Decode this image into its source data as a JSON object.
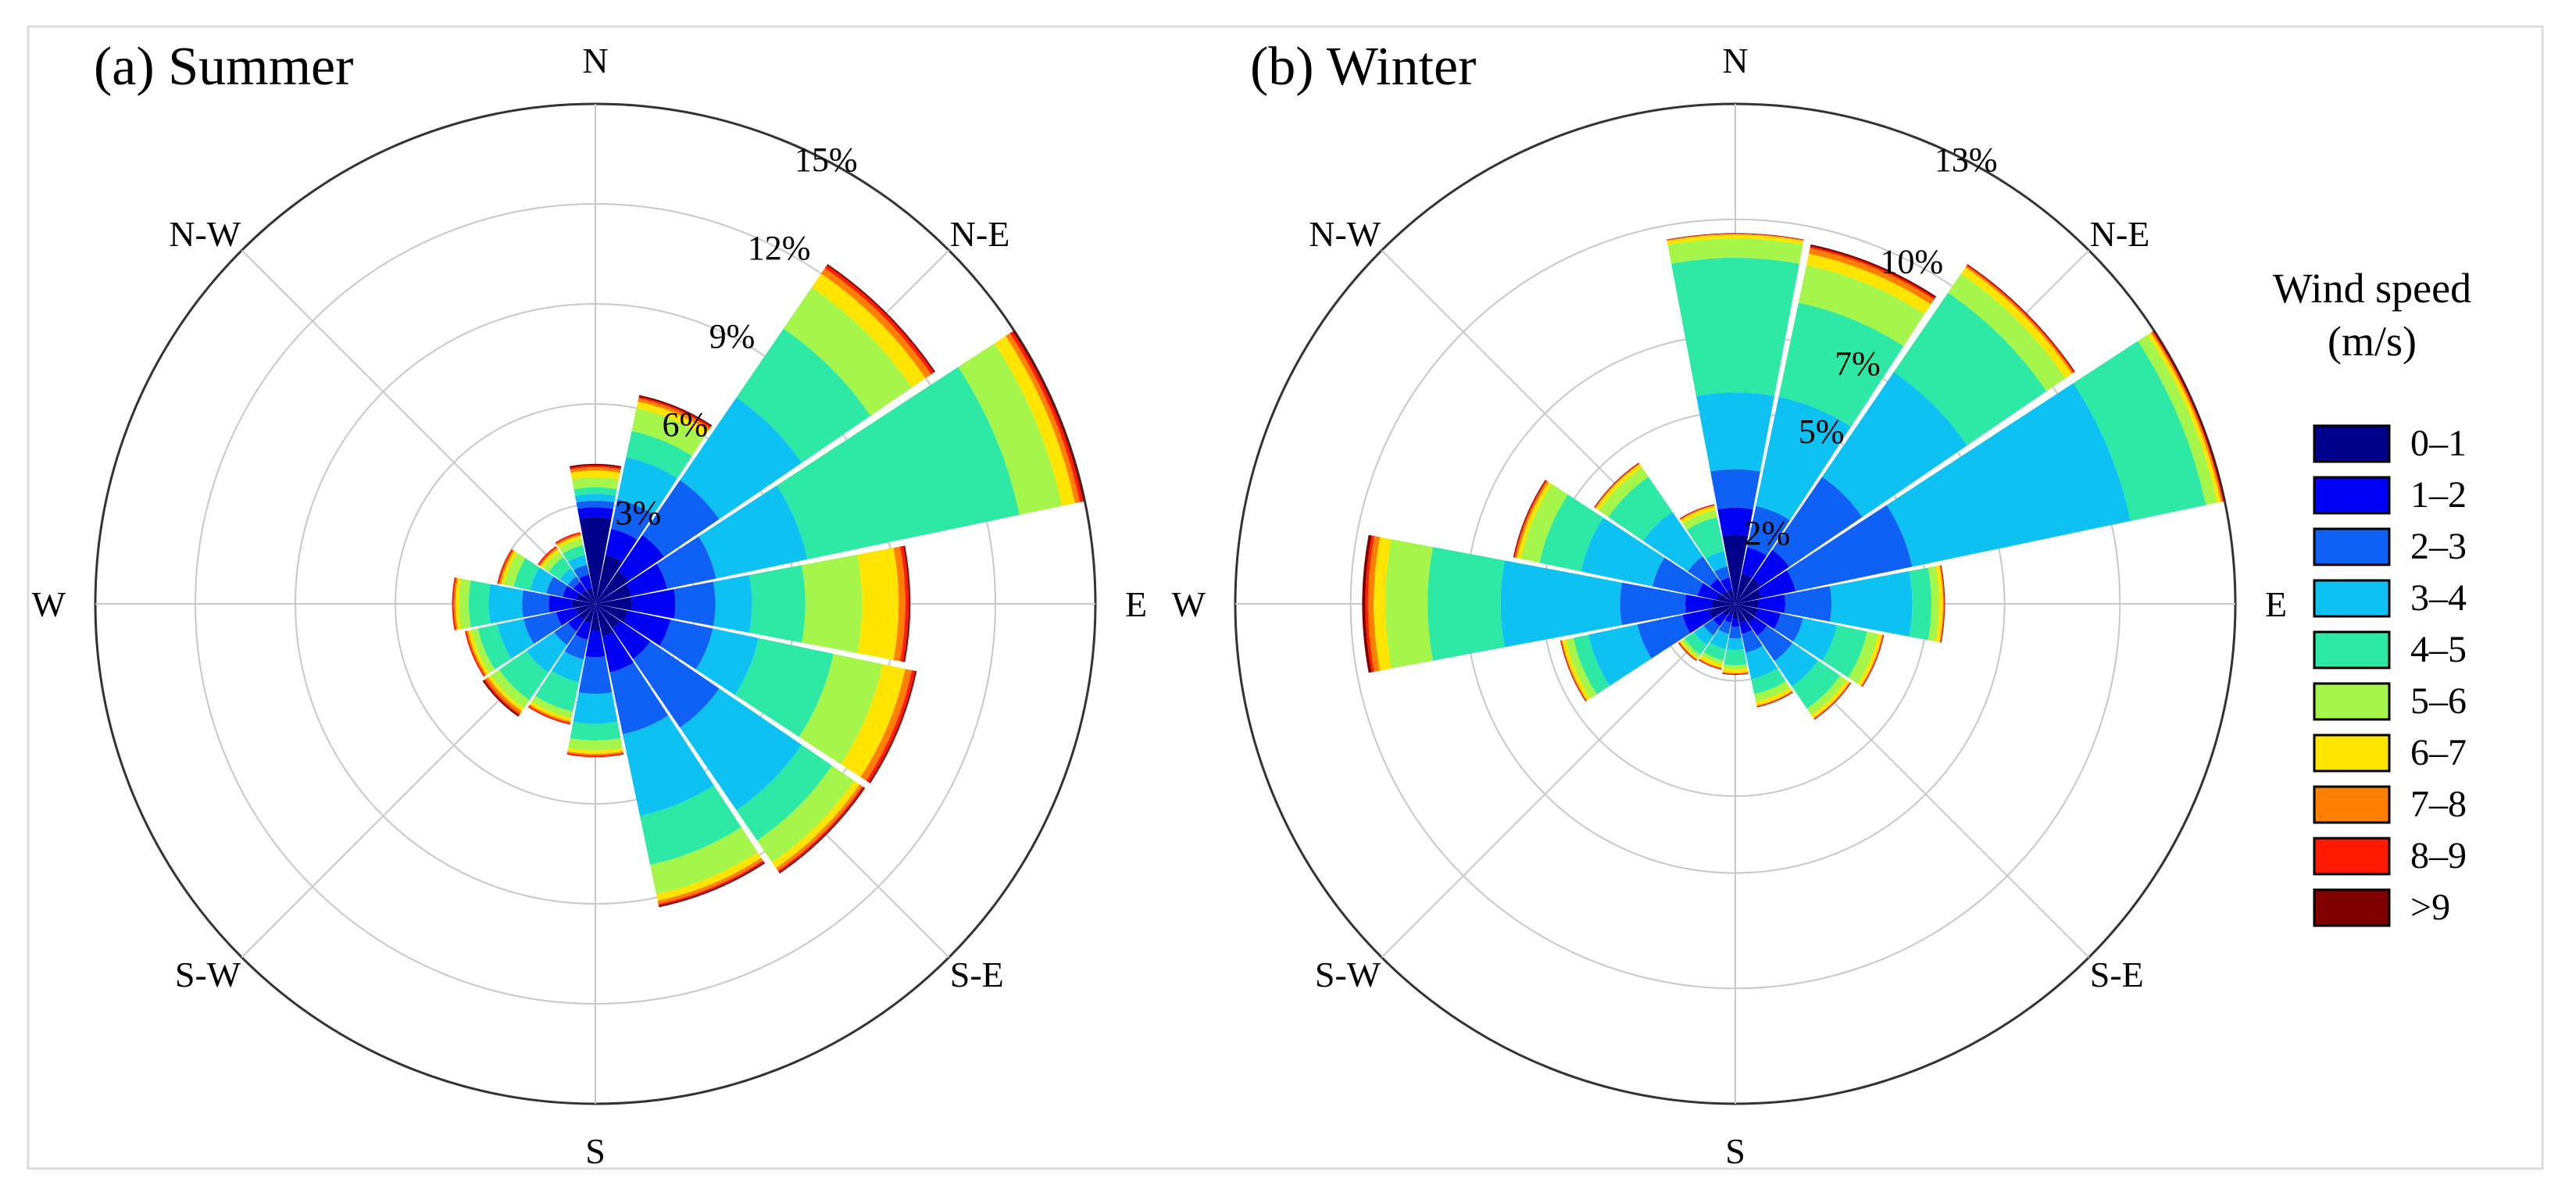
{
  "chart_data": [
    {
      "type": "wind-rose",
      "title": "(a) Summer",
      "directions": [
        "N",
        "NNE",
        "NE",
        "ENE",
        "E",
        "ESE",
        "SE",
        "SSE",
        "S",
        "SSW",
        "SW",
        "WSW",
        "W",
        "WNW",
        "NW",
        "NNW"
      ],
      "compass_labels": [
        "N",
        "N-E",
        "E",
        "S-E",
        "S",
        "S-W",
        "W",
        "N-W"
      ],
      "radial_max": 15,
      "radial_ticks": [
        3,
        6,
        9,
        12,
        15
      ],
      "radial_tick_labels": [
        "3%",
        "6%",
        "9%",
        "12%",
        "15%"
      ],
      "speed_bins": [
        "0–1",
        "1–2",
        "2–3",
        "3–4",
        "4–5",
        "5–6",
        "6–7",
        "7–8",
        "8–9",
        ">9"
      ],
      "cumulative_percent": [
        [
          2.6,
          2.9,
          3.1,
          3.3,
          3.5,
          3.8,
          4.0,
          4.1,
          4.15,
          4.2
        ],
        [
          1.5,
          2.3,
          3.2,
          4.5,
          5.3,
          6.0,
          6.2,
          6.3,
          6.35,
          6.4
        ],
        [
          1.2,
          2.5,
          4.5,
          7.5,
          10.0,
          11.5,
          12.0,
          12.2,
          12.3,
          12.35
        ],
        [
          1.1,
          2.2,
          3.7,
          6.5,
          13.0,
          14.3,
          14.7,
          14.85,
          14.95,
          15.0
        ],
        [
          1.1,
          2.4,
          3.6,
          4.7,
          6.3,
          8.0,
          9.1,
          9.3,
          9.4,
          9.45
        ],
        [
          1.0,
          2.3,
          3.6,
          5.0,
          7.3,
          8.8,
          9.5,
          9.7,
          9.8,
          9.85
        ],
        [
          0.9,
          2.0,
          4.5,
          7.5,
          8.6,
          9.4,
          9.6,
          9.7,
          9.75,
          9.8
        ],
        [
          1.0,
          2.1,
          4.0,
          6.5,
          8.0,
          8.9,
          9.1,
          9.2,
          9.25,
          9.3
        ],
        [
          0.8,
          1.6,
          2.7,
          3.6,
          4.1,
          4.4,
          4.5,
          4.55,
          4.6,
          4.6
        ],
        [
          0.6,
          1.1,
          1.7,
          2.4,
          3.3,
          3.5,
          3.6,
          3.65,
          3.7,
          3.7
        ],
        [
          0.6,
          1.0,
          1.5,
          2.5,
          3.5,
          3.8,
          3.9,
          4.0,
          4.05,
          4.1
        ],
        [
          0.6,
          1.2,
          2.2,
          3.0,
          3.6,
          3.8,
          3.9,
          3.95,
          4.0,
          4.0
        ],
        [
          0.7,
          1.4,
          2.2,
          3.2,
          3.8,
          4.1,
          4.2,
          4.25,
          4.3,
          4.3
        ],
        [
          0.6,
          1.0,
          1.5,
          2.0,
          2.5,
          2.8,
          2.9,
          2.95,
          3.0,
          3.0
        ],
        [
          0.5,
          0.8,
          1.0,
          1.3,
          1.7,
          1.9,
          2.0,
          2.05,
          2.1,
          2.1
        ],
        [
          0.5,
          0.9,
          1.2,
          1.5,
          1.8,
          2.0,
          2.1,
          2.15,
          2.2,
          2.2
        ]
      ]
    },
    {
      "type": "wind-rose",
      "title": "(b) Winter",
      "directions": [
        "N",
        "NNE",
        "NE",
        "ENE",
        "E",
        "ESE",
        "SE",
        "SSE",
        "S",
        "SSW",
        "SW",
        "WSW",
        "W",
        "WNW",
        "NW",
        "NNW"
      ],
      "compass_labels": [
        "N",
        "N-E",
        "E",
        "S-E",
        "S",
        "S-W",
        "W",
        "N-W"
      ],
      "radial_max": 13,
      "radial_ticks": [
        2,
        5,
        7,
        10,
        13
      ],
      "radial_tick_labels": [
        "2%",
        "5%",
        "7%",
        "10%",
        "13%"
      ],
      "speed_bins": [
        "0–1",
        "1–2",
        "2–3",
        "3–4",
        "4–5",
        "5–6",
        "6–7",
        "7–8",
        "8–9",
        ">9"
      ],
      "cumulative_percent": [
        [
          1.8,
          2.5,
          3.5,
          5.5,
          9.0,
          9.5,
          9.6,
          9.62,
          9.63,
          9.64
        ],
        [
          0.8,
          1.5,
          2.6,
          5.5,
          8.0,
          9.0,
          9.3,
          9.45,
          9.5,
          9.55
        ],
        [
          0.8,
          1.7,
          4.0,
          7.3,
          9.8,
          10.4,
          10.6,
          10.65,
          10.68,
          10.7
        ],
        [
          0.7,
          1.6,
          4.7,
          10.5,
          12.5,
          12.8,
          12.9,
          12.95,
          12.97,
          13.0
        ],
        [
          0.6,
          1.3,
          2.5,
          4.6,
          5.1,
          5.3,
          5.4,
          5.42,
          5.44,
          5.45
        ],
        [
          0.6,
          1.2,
          1.8,
          2.7,
          3.5,
          3.8,
          3.9,
          3.92,
          3.94,
          3.95
        ],
        [
          0.6,
          1.0,
          1.8,
          2.6,
          3.3,
          3.5,
          3.6,
          3.62,
          3.64,
          3.65
        ],
        [
          0.5,
          0.8,
          1.3,
          2.0,
          2.4,
          2.6,
          2.7,
          2.72,
          2.74,
          2.75
        ],
        [
          0.4,
          0.6,
          0.9,
          1.2,
          1.6,
          1.7,
          1.8,
          1.82,
          1.84,
          1.85
        ],
        [
          0.3,
          0.5,
          0.8,
          1.2,
          1.5,
          1.6,
          1.7,
          1.72,
          1.74,
          1.75
        ],
        [
          0.4,
          0.7,
          1.0,
          1.3,
          1.6,
          1.7,
          1.75,
          1.77,
          1.79,
          1.8
        ],
        [
          0.7,
          1.4,
          2.6,
          3.9,
          4.3,
          4.5,
          4.6,
          4.62,
          4.64,
          4.65
        ],
        [
          0.6,
          1.3,
          3.0,
          6.1,
          8.0,
          9.1,
          9.4,
          9.55,
          9.62,
          9.7
        ],
        [
          0.5,
          1.0,
          2.2,
          4.1,
          5.2,
          5.7,
          5.8,
          5.85,
          5.88,
          5.9
        ],
        [
          0.4,
          0.8,
          1.5,
          2.9,
          4.0,
          4.3,
          4.4,
          4.42,
          4.44,
          4.45
        ],
        [
          0.4,
          0.7,
          1.0,
          1.4,
          2.3,
          2.5,
          2.6,
          2.62,
          2.64,
          2.65
        ]
      ]
    }
  ],
  "legend": {
    "title_line1": "Wind speed",
    "title_line2": "(m/s)",
    "items": [
      {
        "label": "0–1",
        "color": "#00008b"
      },
      {
        "label": "1–2",
        "color": "#0000f5"
      },
      {
        "label": "2–3",
        "color": "#0f61f5"
      },
      {
        "label": "3–4",
        "color": "#0dc2f2"
      },
      {
        "label": "4–5",
        "color": "#2ee8a5"
      },
      {
        "label": "5–6",
        "color": "#a5f54a"
      },
      {
        "label": "6–7",
        "color": "#ffe400"
      },
      {
        "label": "7–8",
        "color": "#ff8000"
      },
      {
        "label": "8–9",
        "color": "#ff1a00"
      },
      {
        "label": ">9",
        "color": "#800000"
      }
    ]
  }
}
